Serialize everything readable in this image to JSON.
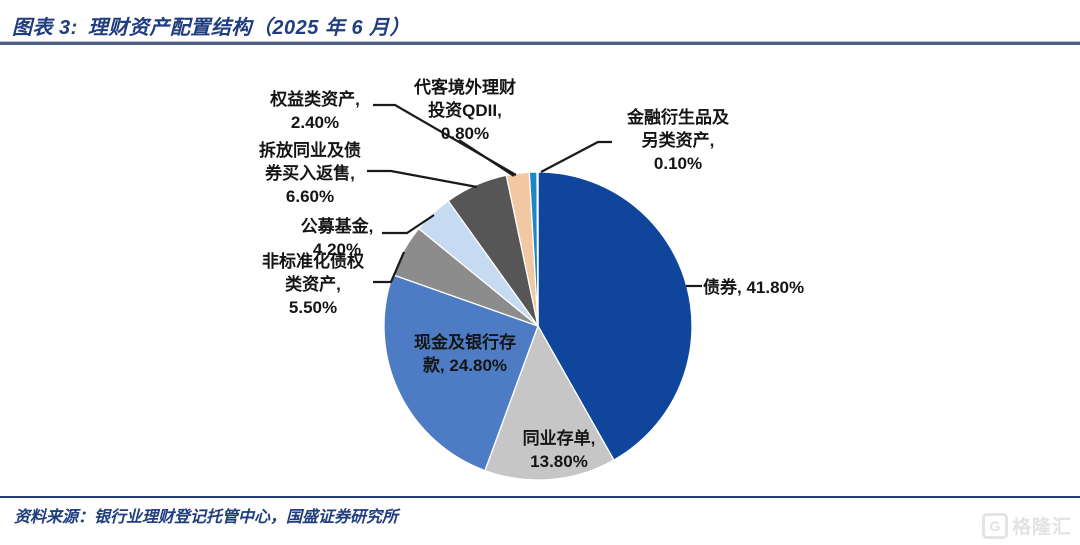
{
  "header": {
    "figure_no": "图表 3:",
    "title": "理财资产配置结构（2025 年 6 月）"
  },
  "footer": {
    "source": "资料来源：银行业理财登记托管中心，国盛证券研究所"
  },
  "watermark": {
    "icon": "G",
    "brand": "格隆汇"
  },
  "colors": {
    "title_text": "#1F3D7F",
    "title_rule": "#50617F",
    "footer_rule": "#26406F",
    "callout_line": "#1A1A1A",
    "label_text": "#151515",
    "background": "#FFFFFF"
  },
  "chart_data": {
    "type": "pie",
    "title": "理财资产配置结构（2025 年 6 月）",
    "unit": "percent",
    "direction": "clockwise",
    "start_angle_deg": 0,
    "legend_position": "none",
    "slices": [
      {
        "name": "债券",
        "value": 41.8,
        "label": "债券, 41.80%",
        "color": "#10459C"
      },
      {
        "name": "同业存单",
        "value": 13.8,
        "label": "同业存单,\n13.80%",
        "color": "#C6C6C6"
      },
      {
        "name": "现金及银行存款",
        "value": 24.8,
        "label": "现金及银行存\n款, 24.80%",
        "color": "#4E7CC4"
      },
      {
        "name": "非标准化债权类资产",
        "value": 5.5,
        "label": "非标准化债权\n类资产,\n5.50%",
        "color": "#8C8C8C"
      },
      {
        "name": "公募基金",
        "value": 4.2,
        "label": "公募基金,\n4.20%",
        "color": "#C6DAF2"
      },
      {
        "name": "拆放同业及债券买入返售",
        "value": 6.6,
        "label": "拆放同业及债\n券买入返售,\n6.60%",
        "color": "#565656"
      },
      {
        "name": "权益类资产",
        "value": 2.4,
        "label": "权益类资产,\n2.40%",
        "color": "#F2C8A2"
      },
      {
        "name": "代客境外理财投资QDII",
        "value": 0.8,
        "label": "代客境外理财\n投资QDII,\n0.80%",
        "color": "#1B87C6"
      },
      {
        "name": "金融衍生品及另类资产",
        "value": 0.1,
        "label": "金融衍生品及\n另类资产,\n0.10%",
        "color": "#69A845"
      }
    ]
  }
}
